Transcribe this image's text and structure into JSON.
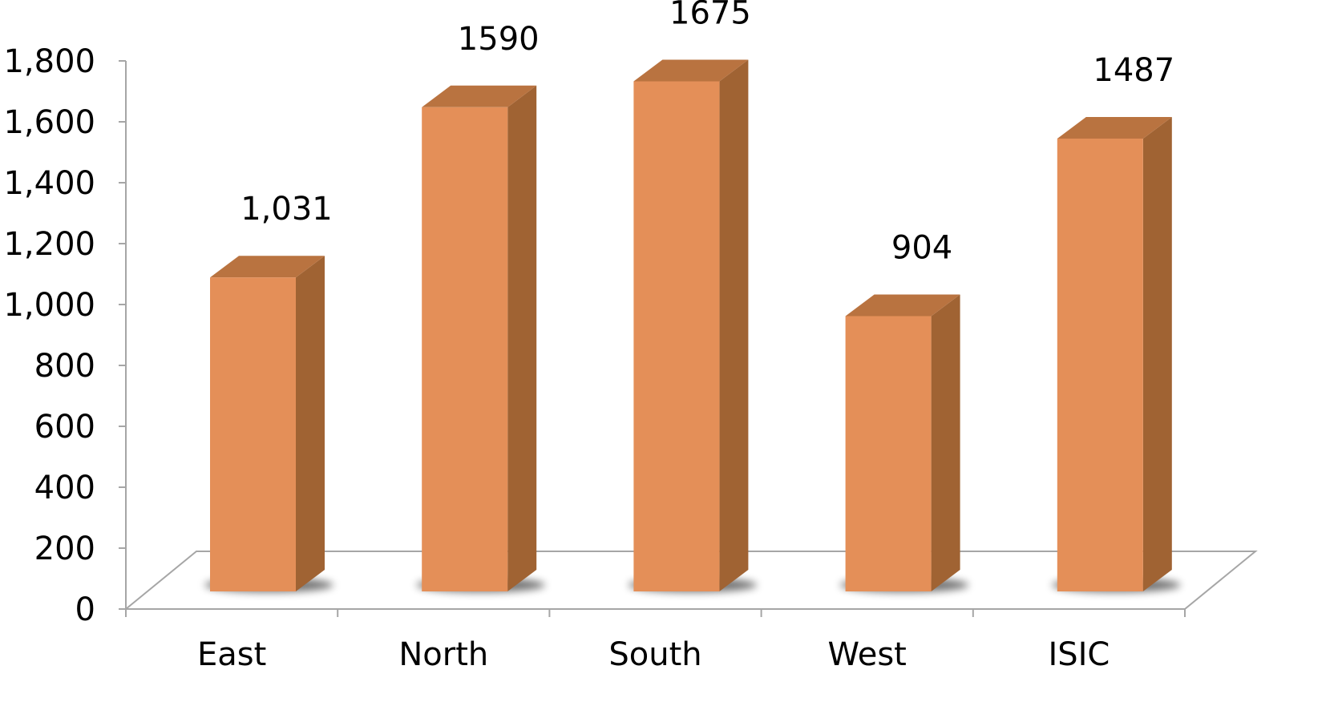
{
  "chart_data": {
    "type": "bar",
    "categories": [
      "East",
      "North",
      "South",
      "West",
      "ISIC"
    ],
    "values": [
      1031,
      1590,
      1675,
      904,
      1487
    ],
    "data_labels": [
      "1,031",
      "1590",
      "1675",
      "904",
      "1487"
    ],
    "y_ticks": [
      "0",
      "200",
      "400",
      "600",
      "800",
      "1,000",
      "1,200",
      "1,400",
      "1,600",
      "1,800"
    ],
    "ylim": [
      0,
      1800
    ],
    "title": "",
    "xlabel": "",
    "ylabel": "",
    "grid": false,
    "legend": "none",
    "style": "3d-column",
    "colors": {
      "front": "#E48F58",
      "side": "#A06333",
      "top": "#B97340",
      "axis": "#A6A6A6",
      "text": "#000000"
    }
  }
}
